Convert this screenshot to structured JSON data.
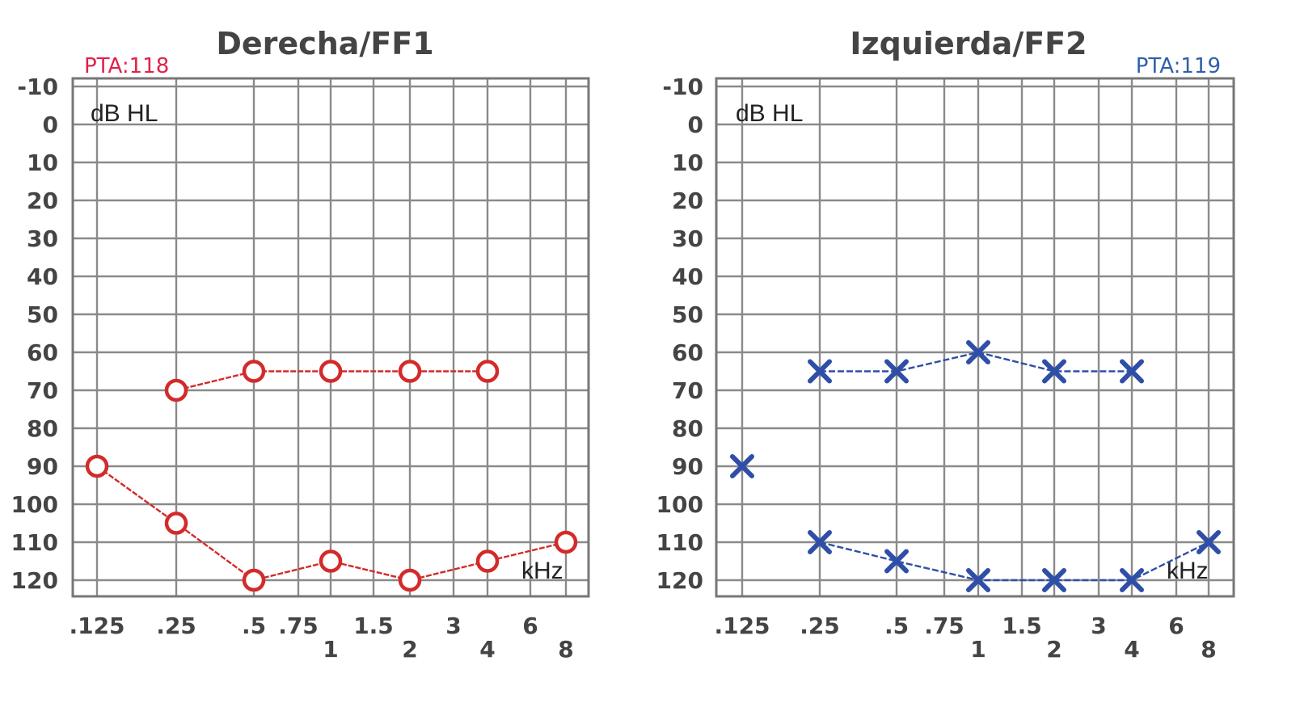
{
  "chart_data": [
    {
      "type": "line",
      "title": "Derecha/FF1",
      "pta_label": "PTA:118",
      "pta_color": "#e0224a",
      "series_color": "#d32a2a",
      "marker": "circle",
      "y_unit_label": "dB HL",
      "x_unit_label": "kHz",
      "y_inverted": true,
      "ylim": [
        -10,
        125
      ],
      "y_ticks": [
        "-10",
        "0",
        "10",
        "20",
        "30",
        "40",
        "50",
        "60",
        "70",
        "80",
        "90",
        "100",
        "110",
        "120"
      ],
      "x_ticks_top": [
        ".125",
        ".25",
        ".5",
        ".75",
        "1.5",
        "3",
        "6"
      ],
      "x_ticks_bottom": [
        "1",
        "2",
        "4",
        "8"
      ],
      "grid": true,
      "series": [
        {
          "x": [
            0.25,
            0.5,
            1,
            2,
            4
          ],
          "values": [
            70,
            65,
            65,
            65,
            65
          ]
        },
        {
          "x": [
            0.125,
            0.25,
            0.5,
            1,
            2,
            4,
            8
          ],
          "values": [
            90,
            105,
            120,
            115,
            120,
            115,
            110
          ]
        }
      ]
    },
    {
      "type": "line",
      "title": "Izquierda/FF2",
      "pta_label": "PTA:119",
      "pta_color": "#2f5faa",
      "series_color": "#2f4ea8",
      "marker": "x",
      "y_unit_label": "dB HL",
      "x_unit_label": "kHz",
      "y_inverted": true,
      "ylim": [
        -10,
        125
      ],
      "y_ticks": [
        "-10",
        "0",
        "10",
        "20",
        "30",
        "40",
        "50",
        "60",
        "70",
        "80",
        "90",
        "100",
        "110",
        "120"
      ],
      "x_ticks_top": [
        ".125",
        ".25",
        ".5",
        ".75",
        "1.5",
        "3",
        "6"
      ],
      "x_ticks_bottom": [
        "1",
        "2",
        "4",
        "8"
      ],
      "grid": true,
      "series": [
        {
          "x": [
            0.125
          ],
          "values": [
            90
          ]
        },
        {
          "x": [
            0.25,
            0.5,
            1,
            2,
            4
          ],
          "values": [
            65,
            65,
            60,
            65,
            65
          ]
        },
        {
          "x": [
            0.25,
            0.5,
            1,
            2,
            4,
            8
          ],
          "values": [
            110,
            115,
            120,
            120,
            120,
            110
          ]
        }
      ]
    }
  ]
}
